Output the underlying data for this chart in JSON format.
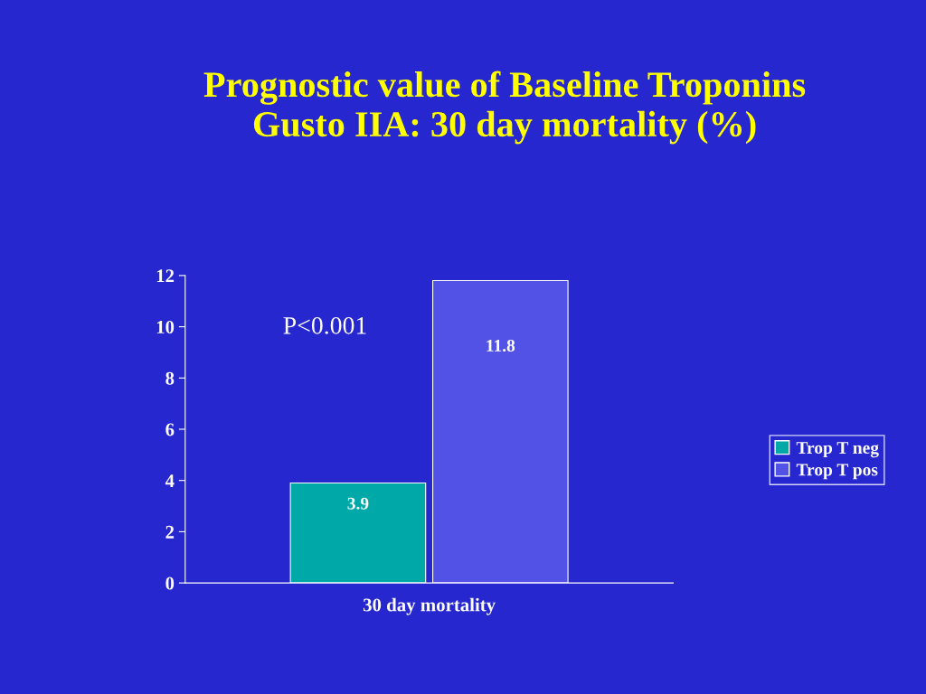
{
  "chart_data": {
    "type": "bar",
    "title": "Prognostic value of Baseline Troponins\nGusto IIA: 30 day mortality (%)",
    "categories": [
      "30 day mortality"
    ],
    "series": [
      {
        "name": "Trop T neg",
        "color": "#00a8a8",
        "values": [
          3.9
        ]
      },
      {
        "name": "Trop T pos",
        "color": "#5252e6",
        "values": [
          11.8
        ]
      }
    ],
    "ylim": [
      0,
      12
    ],
    "yticks": [
      0,
      2,
      4,
      6,
      8,
      10,
      12
    ],
    "data_labels": true,
    "grid": false,
    "legend": "right",
    "annotations": [
      "P<0.001"
    ]
  }
}
